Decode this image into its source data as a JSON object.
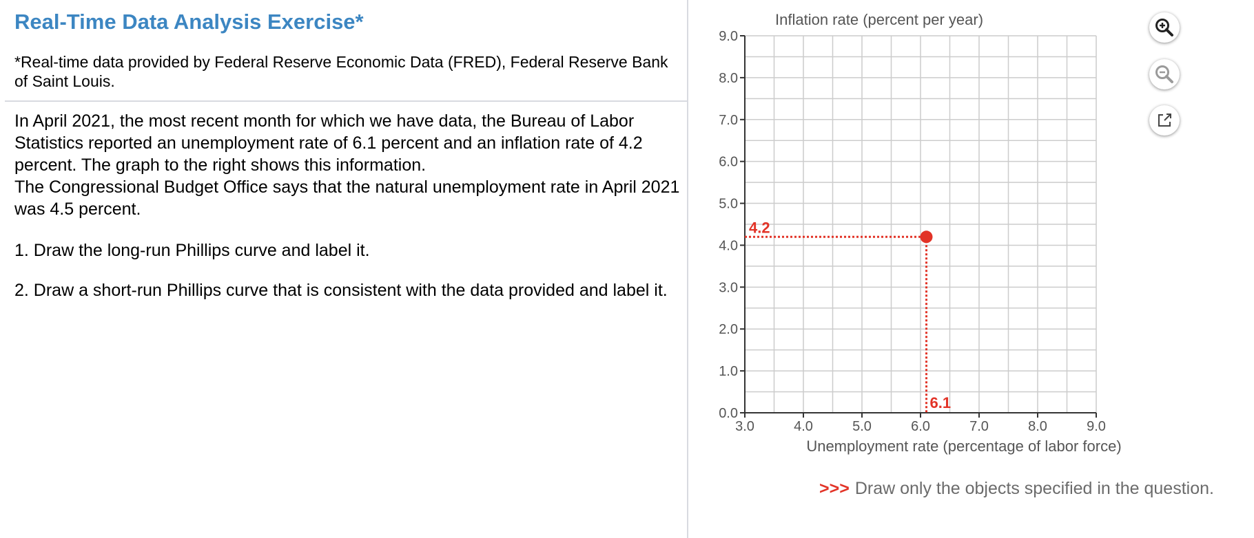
{
  "exercise": {
    "title": "Real-Time Data Analysis Exercise*",
    "source_note": "*Real-time data provided by Federal Reserve Economic Data (FRED), Federal Reserve Bank of Saint Louis.",
    "prompt_line1": "In April 2021, the most recent month for which we have data, the Bureau of Labor Statistics reported an unemployment rate of 6.1 percent and an inflation rate of 4.2 percent. The graph to the right shows this information.",
    "prompt_line2": "The Congressional Budget Office says that the natural unemployment rate in April 2021 was 4.5 percent.",
    "question1": "1. Draw the long-run Phillips curve and label it.",
    "question2": "2. Draw a short-run Phillips curve that is consistent with the data provided and label it."
  },
  "tools": {
    "zoom_in": "zoom-in-icon",
    "zoom_out": "zoom-out-icon",
    "popout": "popout-icon"
  },
  "instruction": {
    "arrows": ">>>",
    "text": "Draw only the objects specified in the question."
  },
  "colors": {
    "title": "#3c86c2",
    "highlight": "#e23327",
    "grid": "#cccccc"
  },
  "chart_data": {
    "type": "scatter",
    "ylabel": "Inflation rate (percent per year)",
    "xlabel": "Unemployment rate (percentage of labor force)",
    "xlim": [
      3.0,
      9.0
    ],
    "ylim": [
      0.0,
      9.0
    ],
    "x_ticks": [
      "3.0",
      "4.0",
      "5.0",
      "6.0",
      "7.0",
      "8.0",
      "9.0"
    ],
    "y_ticks": [
      "0.0",
      "1.0",
      "2.0",
      "3.0",
      "4.0",
      "5.0",
      "6.0",
      "7.0",
      "8.0",
      "9.0"
    ],
    "grid": true,
    "points": [
      {
        "x": 6.1,
        "y": 4.2,
        "x_label": "6.1",
        "y_label": "4.2"
      }
    ]
  }
}
